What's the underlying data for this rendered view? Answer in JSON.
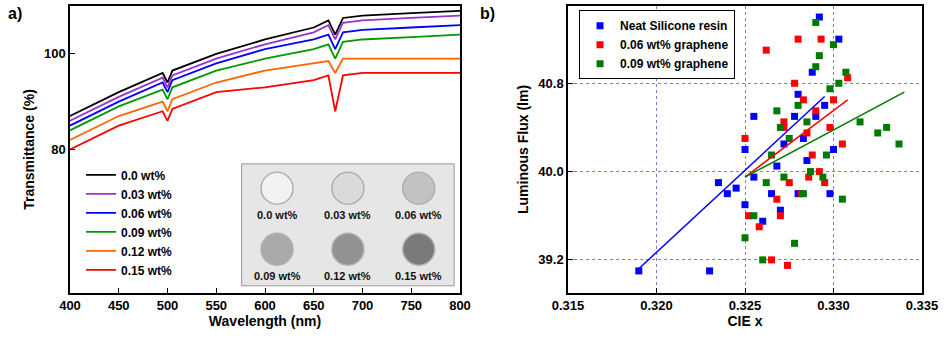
{
  "chart_data": [
    {
      "type": "line",
      "panel": "a)",
      "x_label": "Wavelength (nm)",
      "y_label": "Transmittance (%)",
      "x": [
        400,
        450,
        495,
        500,
        505,
        550,
        600,
        650,
        665,
        672,
        680,
        700,
        750,
        800
      ],
      "series": [
        {
          "name": "0.0 wt%",
          "color": "#000000",
          "values": [
            87,
            92,
            96,
            94,
            96.5,
            100,
            103,
            105.5,
            107,
            104,
            107.5,
            108,
            108.5,
            109
          ]
        },
        {
          "name": "0.03 wt%",
          "color": "#9933cc",
          "values": [
            86,
            91,
            95,
            93,
            95.5,
            99,
            102,
            104.5,
            106,
            103,
            106.5,
            107,
            107.5,
            108
          ]
        },
        {
          "name": "0.06 wt%",
          "color": "#0000ff",
          "values": [
            85,
            90,
            94,
            92,
            94.5,
            98,
            101,
            103,
            104,
            101,
            104.5,
            105,
            105.5,
            106
          ]
        },
        {
          "name": "0.09 wt%",
          "color": "#009900",
          "values": [
            84,
            89,
            92.5,
            90.5,
            93,
            96.5,
            99,
            101,
            102,
            99,
            102.5,
            103,
            103.5,
            104
          ]
        },
        {
          "name": "0.12 wt%",
          "color": "#ff6600",
          "values": [
            82,
            87,
            90,
            88,
            90.5,
            94,
            96.5,
            98,
            98.5,
            96,
            99,
            99,
            99,
            99
          ]
        },
        {
          "name": "0.15 wt%",
          "color": "#ff0000",
          "values": [
            80,
            85,
            88,
            86,
            88.5,
            92,
            93,
            94.5,
            95.5,
            88,
            95.5,
            96,
            96,
            96
          ]
        }
      ],
      "xlim": [
        400,
        800
      ],
      "xticks": [
        400,
        450,
        500,
        550,
        600,
        650,
        700,
        750,
        800
      ],
      "ylim": [
        50,
        110
      ],
      "yticks": [
        80,
        100
      ],
      "grid": false,
      "legend": "lower-left",
      "inset_labels": [
        "0.0 wt%",
        "0.03 wt%",
        "0.06 wt%",
        "0.09 wt%",
        "0.12 wt%",
        "0.15 wt%"
      ]
    },
    {
      "type": "scatter",
      "panel": "b)",
      "x_label": "CIE x",
      "y_label": "Luminous Flux (lm)",
      "series": [
        {
          "name": "Neat Silicone resin",
          "color": "#0000ff",
          "marker": "square",
          "x": [
            0.319,
            0.323,
            0.3235,
            0.324,
            0.3245,
            0.325,
            0.3255,
            0.325,
            0.3255,
            0.326,
            0.3265,
            0.3268,
            0.327,
            0.3272,
            0.3278,
            0.328,
            0.3283,
            0.3285,
            0.3288,
            0.329,
            0.3292,
            0.3295,
            0.3298,
            0.33,
            0.3303,
            0.328
          ],
          "values": [
            39.1,
            39.1,
            39.9,
            39.8,
            39.85,
            39.7,
            39.95,
            40.2,
            40.5,
            39.55,
            39.8,
            40.05,
            39.65,
            40.25,
            40.5,
            39.8,
            40.3,
            40.1,
            40.9,
            40.5,
            41.4,
            40.6,
            39.8,
            40.2,
            41.2,
            40.7
          ],
          "fit": {
            "x": [
              0.319,
              0.3295
            ],
            "values": [
              39.12,
              40.68
            ],
            "line_style": "solid"
          }
        },
        {
          "name": "0.06 wt% graphene",
          "color": "#ff0000",
          "marker": "square",
          "x": [
            0.325,
            0.3252,
            0.3258,
            0.3262,
            0.3265,
            0.3268,
            0.327,
            0.3272,
            0.3274,
            0.3275,
            0.3278,
            0.328,
            0.3282,
            0.3285,
            0.3286,
            0.3288,
            0.329,
            0.3292,
            0.3293,
            0.3295,
            0.3298,
            0.33,
            0.3305,
            0.3308,
            0.3272,
            0.3283
          ],
          "values": [
            40.3,
            39.6,
            39.5,
            41.1,
            39.2,
            39.75,
            39.6,
            40.45,
            39.15,
            39.9,
            40.8,
            41.2,
            39.8,
            40.35,
            39.95,
            40.15,
            40.55,
            40.0,
            41.2,
            39.9,
            40.4,
            40.65,
            40.25,
            40.85,
            40.4,
            40.65
          ],
          "fit": {
            "x": [
              0.325,
              0.3308
            ],
            "values": [
              39.95,
              40.65
            ],
            "line_style": "solid"
          }
        },
        {
          "name": "0.09 wt% graphene",
          "color": "#007a00",
          "marker": "square",
          "x": [
            0.325,
            0.3255,
            0.326,
            0.3262,
            0.3265,
            0.3268,
            0.327,
            0.3272,
            0.3275,
            0.3278,
            0.328,
            0.3283,
            0.3285,
            0.3287,
            0.329,
            0.3292,
            0.3294,
            0.3296,
            0.3298,
            0.33,
            0.3303,
            0.3305,
            0.3307,
            0.3315,
            0.3325,
            0.333,
            0.3337,
            0.329
          ],
          "values": [
            39.4,
            39.6,
            39.2,
            39.9,
            40.15,
            40.55,
            40.4,
            39.95,
            40.3,
            39.35,
            40.6,
            39.8,
            40.45,
            40.0,
            41.35,
            41.05,
            39.95,
            40.15,
            40.75,
            41.15,
            40.8,
            39.75,
            40.9,
            40.45,
            40.35,
            40.4,
            40.25,
            40.95
          ],
          "fit": {
            "x": [
              0.325,
              0.334
            ],
            "values": [
              39.95,
              40.72
            ],
            "line_style": "solid"
          }
        }
      ],
      "xlim": [
        0.315,
        0.335
      ],
      "xticks": [
        0.315,
        {
          "value": 0.32,
          "label": "0.320"
        },
        0.325,
        {
          "value": 0.33,
          "label": "0.330"
        },
        0.335
      ],
      "ylim": [
        38.9,
        41.5
      ],
      "yticks": [
        39.2,
        {
          "value": 40.0,
          "label": "40.0"
        },
        40.8
      ],
      "grid": true,
      "legend": "upper-left"
    }
  ]
}
